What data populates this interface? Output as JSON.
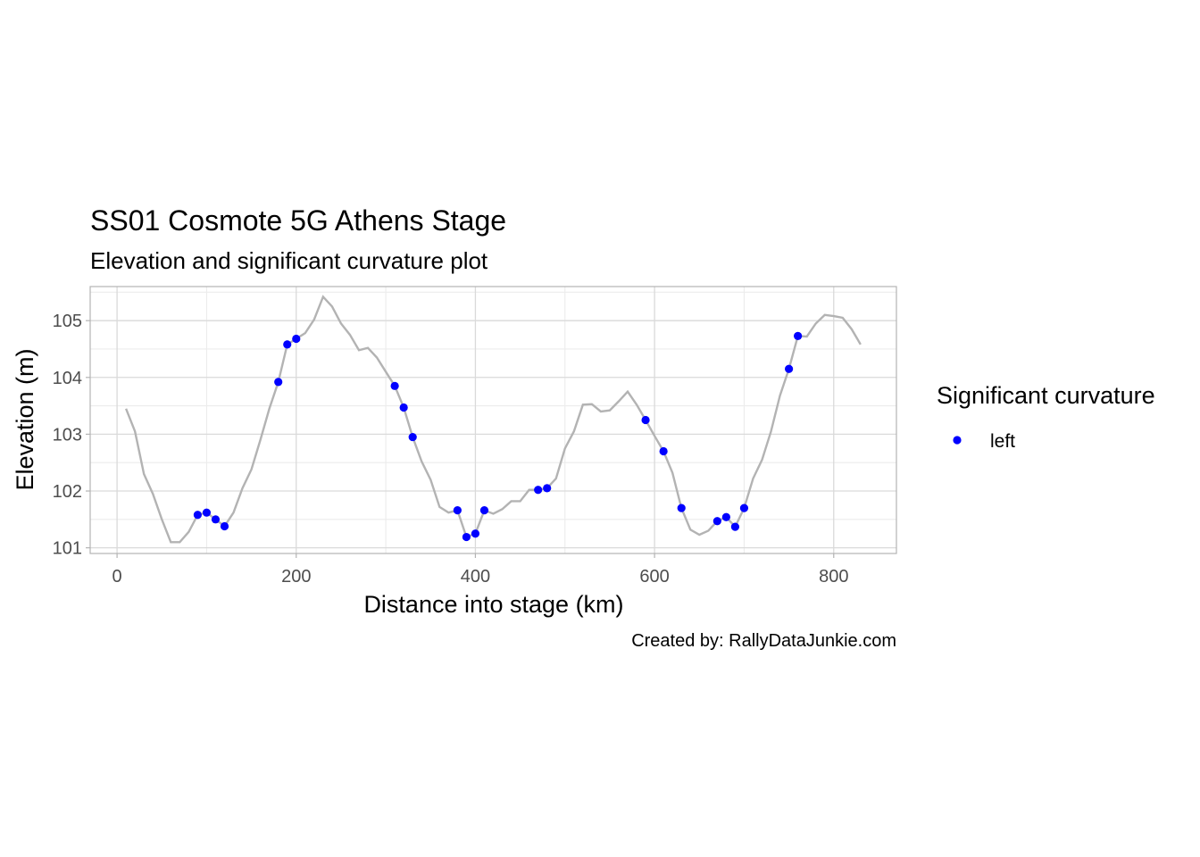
{
  "chart_data": {
    "type": "line",
    "title": "SS01 Cosmote 5G Athens Stage",
    "subtitle": "Elevation and significant curvature plot",
    "xlabel": "Distance into stage (km)",
    "ylabel": "Elevation (m)",
    "caption": "Created by: RallyDataJunkie.com",
    "xlim": [
      -30,
      870
    ],
    "ylim": [
      100.9,
      105.6
    ],
    "x_ticks": [
      0,
      200,
      400,
      600,
      800
    ],
    "y_ticks": [
      101,
      102,
      103,
      104,
      105
    ],
    "grid": true,
    "legend": {
      "title": "Significant curvature",
      "entries": [
        "left"
      ],
      "position": "right"
    },
    "colors": {
      "line": "#b3b3b3",
      "points": "#0000ff",
      "grid_major": "#dadada",
      "grid_minor": "#ececec",
      "border": "#b3b3b3"
    },
    "series": [
      {
        "type": "line",
        "x": [
          10,
          20,
          30,
          40,
          50,
          60,
          70,
          80,
          90,
          100,
          110,
          120,
          130,
          140,
          150,
          160,
          170,
          180,
          190,
          200,
          210,
          220,
          230,
          240,
          250,
          260,
          270,
          280,
          290,
          300,
          310,
          320,
          330,
          340,
          350,
          360,
          370,
          380,
          390,
          400,
          410,
          420,
          430,
          440,
          450,
          460,
          470,
          480,
          490,
          500,
          510,
          520,
          530,
          540,
          550,
          560,
          570,
          580,
          590,
          600,
          610,
          620,
          630,
          640,
          650,
          660,
          670,
          680,
          690,
          700,
          710,
          720,
          730,
          740,
          750,
          760,
          770,
          780,
          790,
          800,
          810,
          820,
          830
        ],
        "y": [
          103.45,
          103.05,
          102.3,
          101.95,
          101.5,
          101.1,
          101.1,
          101.28,
          101.58,
          101.62,
          101.5,
          101.38,
          101.62,
          102.05,
          102.38,
          102.9,
          103.45,
          103.92,
          104.58,
          104.68,
          104.78,
          105.02,
          105.42,
          105.25,
          104.95,
          104.75,
          104.48,
          104.52,
          104.35,
          104.1,
          103.85,
          103.47,
          102.95,
          102.52,
          102.2,
          101.72,
          101.62,
          101.66,
          101.19,
          101.25,
          101.66,
          101.6,
          101.68,
          101.82,
          101.82,
          102.02,
          102.02,
          102.05,
          102.22,
          102.75,
          103.05,
          103.52,
          103.53,
          103.4,
          103.42,
          103.58,
          103.75,
          103.52,
          103.25,
          102.97,
          102.7,
          102.32,
          101.7,
          101.32,
          101.23,
          101.3,
          101.47,
          101.54,
          101.37,
          101.7,
          102.22,
          102.55,
          103.05,
          103.68,
          104.15,
          104.73,
          104.72,
          104.95,
          105.1,
          105.08,
          105.05,
          104.85,
          104.58
        ]
      },
      {
        "name": "left",
        "type": "scatter",
        "x": [
          90,
          100,
          110,
          120,
          180,
          190,
          200,
          310,
          320,
          330,
          380,
          390,
          400,
          410,
          470,
          480,
          590,
          610,
          630,
          670,
          680,
          690,
          700,
          750,
          760
        ],
        "y": [
          101.58,
          101.62,
          101.5,
          101.38,
          103.92,
          104.58,
          104.68,
          103.85,
          103.47,
          102.95,
          101.66,
          101.19,
          101.25,
          101.66,
          102.02,
          102.05,
          103.25,
          102.7,
          101.7,
          101.47,
          101.54,
          101.37,
          101.7,
          104.15,
          104.73
        ]
      }
    ]
  }
}
